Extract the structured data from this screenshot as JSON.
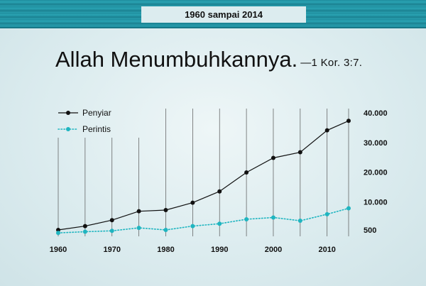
{
  "header": {
    "date_range": "1960 sampai 2014"
  },
  "title": {
    "main": "Allah Menumbuhkannya.",
    "reference": "—1 Kor. 3:7."
  },
  "colors": {
    "penyiar_line": "#111111",
    "perintis_line": "#1fb5c0",
    "header_band": "#2a9fb0",
    "gridline": "#555555"
  },
  "chart_data": {
    "type": "line",
    "x_ticks": [
      1960,
      1970,
      1980,
      1990,
      2000,
      2010
    ],
    "y_ticks": [
      {
        "value": 500,
        "label": "500"
      },
      {
        "value": 10000,
        "label": "10.000"
      },
      {
        "value": 20000,
        "label": "20.000"
      },
      {
        "value": 30000,
        "label": "30.000"
      },
      {
        "value": 40000,
        "label": "40.000"
      }
    ],
    "xlim": [
      1960,
      2014
    ],
    "ylim": [
      500,
      40000
    ],
    "y_axis_side": "right",
    "grid": "vertical",
    "legend_position": "top-left",
    "series": [
      {
        "name": "Penyiar",
        "style": "solid",
        "color": "#111111",
        "points": [
          [
            1960,
            500
          ],
          [
            1965,
            1800
          ],
          [
            1970,
            3800
          ],
          [
            1975,
            6800
          ],
          [
            1980,
            7200
          ],
          [
            1985,
            9700
          ],
          [
            1990,
            13500
          ],
          [
            1995,
            19900
          ],
          [
            2000,
            24800
          ],
          [
            2005,
            26700
          ],
          [
            2010,
            34100
          ],
          [
            2014,
            37300
          ]
        ]
      },
      {
        "name": "Perintis",
        "style": "dotted",
        "color": "#1fb5c0",
        "points": [
          [
            1960,
            -500
          ],
          [
            1965,
            -100
          ],
          [
            1970,
            200
          ],
          [
            1975,
            1200
          ],
          [
            1980,
            500
          ],
          [
            1985,
            1800
          ],
          [
            1990,
            2600
          ],
          [
            1995,
            4100
          ],
          [
            2000,
            4700
          ],
          [
            2005,
            3600
          ],
          [
            2010,
            5800
          ],
          [
            2014,
            7800
          ]
        ]
      }
    ]
  }
}
